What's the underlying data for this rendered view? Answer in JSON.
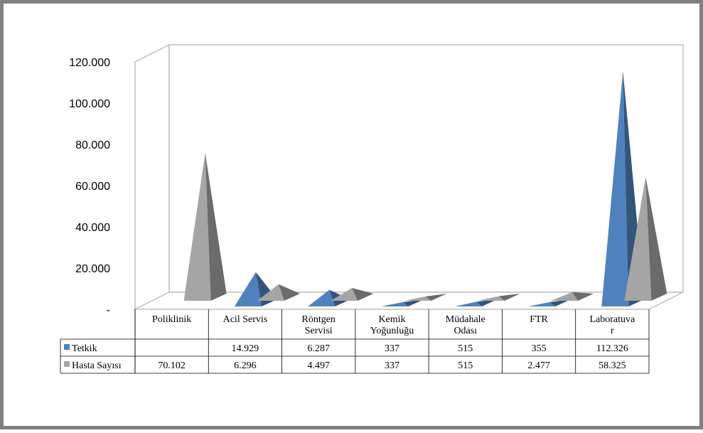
{
  "chart_data": {
    "type": "bar",
    "bar_shape": "pyramid",
    "three_d": true,
    "categories": [
      [
        "Poliklinik"
      ],
      [
        "Acil Servis"
      ],
      [
        "Röntgen",
        "Servisi"
      ],
      [
        "Kemik",
        "Yoğunluğu"
      ],
      [
        "Müdahale",
        "Odası"
      ],
      [
        "FTR"
      ],
      [
        "Laboratuva",
        "r"
      ]
    ],
    "series": [
      {
        "name": "Tetkik",
        "color": "#4f81bd",
        "values": [
          null,
          14929,
          6287,
          337,
          515,
          355,
          112326
        ],
        "labels": [
          "",
          "14.929",
          "6.287",
          "337",
          "515",
          "355",
          "112.326"
        ]
      },
      {
        "name": "Hasta Sayısı",
        "color": "#a5a5a5",
        "values": [
          70102,
          6296,
          4497,
          337,
          515,
          2477,
          58325
        ],
        "labels": [
          "70.102",
          "6.296",
          "4.497",
          "337",
          "515",
          "2.477",
          "58.325"
        ]
      }
    ],
    "y_ticks": [
      "-",
      "20.000",
      "40.000",
      "60.000",
      "80.000",
      "100.000",
      "120.000"
    ],
    "ylim": [
      0,
      120000
    ],
    "data_table": true,
    "grid": false
  }
}
